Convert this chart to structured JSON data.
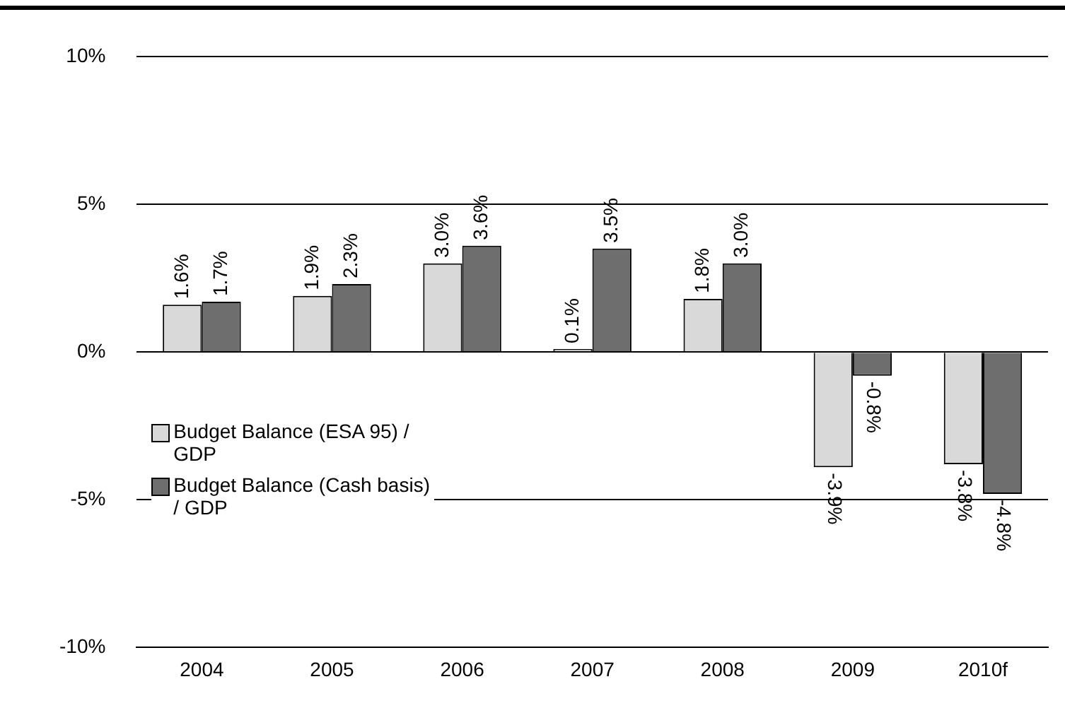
{
  "chart_data": {
    "type": "bar",
    "categories": [
      "2004",
      "2005",
      "2006",
      "2007",
      "2008",
      "2009",
      "2010f"
    ],
    "series": [
      {
        "name": "Budget Balance (ESA 95) / GDP",
        "color": "#d9d9d9",
        "values": [
          1.6,
          1.9,
          3.0,
          0.1,
          1.8,
          -3.9,
          -3.8
        ],
        "value_labels": [
          "1.6%",
          "1.9%",
          "3.0%",
          "0.1%",
          "1.8%",
          "-3.9%",
          "-3.8%"
        ]
      },
      {
        "name": "Budget Balance (Cash basis) / GDP",
        "color": "#6e6e6e",
        "values": [
          1.7,
          2.3,
          3.6,
          3.5,
          3.0,
          -0.8,
          -4.8
        ],
        "value_labels": [
          "1.7%",
          "2.3%",
          "3.6%",
          "3.5%",
          "3.0%",
          "-0.8%",
          "-4.8%"
        ]
      }
    ],
    "ylim": [
      -10,
      10
    ],
    "yticks": [
      {
        "value": -10,
        "label": "-10%"
      },
      {
        "value": -5,
        "label": "-5%"
      },
      {
        "value": 0,
        "label": "0%"
      },
      {
        "value": 5,
        "label": "5%"
      },
      {
        "value": 10,
        "label": "10%"
      }
    ],
    "grid": "y",
    "legend": "left"
  }
}
